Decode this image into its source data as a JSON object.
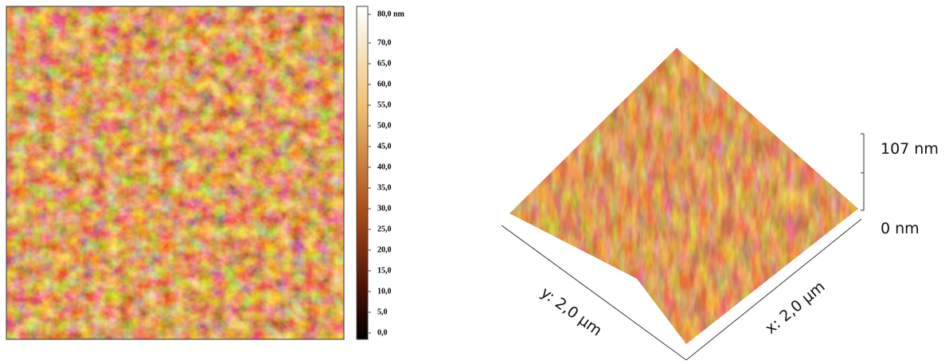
{
  "colorbar": {
    "labels": [
      "80,0 nm",
      "70,0",
      "65,0",
      "60,0",
      "55,0",
      "50,0",
      "45,0",
      "40,0",
      "35,0",
      "30,0",
      "25,0",
      "20,0",
      "15,0",
      "10,0",
      "5,0",
      "0,0"
    ]
  },
  "surface": {
    "height_top": "107 nm",
    "height_bottom": "0 nm",
    "y_axis": "y: 2,0 µm",
    "x_axis": "x: 2,0 µm"
  }
}
